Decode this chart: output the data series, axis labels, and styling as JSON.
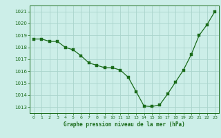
{
  "x": [
    0,
    1,
    2,
    3,
    4,
    5,
    6,
    7,
    8,
    9,
    10,
    11,
    12,
    13,
    14,
    15,
    16,
    17,
    18,
    19,
    20,
    21,
    22,
    23
  ],
  "y": [
    1018.7,
    1018.7,
    1018.5,
    1018.5,
    1018.0,
    1017.8,
    1017.3,
    1016.7,
    1016.5,
    1016.3,
    1016.3,
    1016.1,
    1015.5,
    1014.3,
    1013.1,
    1013.05,
    1013.2,
    1014.1,
    1015.1,
    1016.1,
    1017.4,
    1019.0,
    1019.9,
    1021.0
  ],
  "line_color": "#1a6b1a",
  "marker": "s",
  "marker_size": 2.2,
  "bg_color": "#cceee8",
  "grid_color": "#aad4cc",
  "xlabel": "Graphe pression niveau de la mer (hPa)",
  "xlabel_color": "#1a6b1a",
  "tick_color": "#1a6b1a",
  "ylim": [
    1012.5,
    1021.5
  ],
  "yticks": [
    1013,
    1014,
    1015,
    1016,
    1017,
    1018,
    1019,
    1020,
    1021
  ],
  "xlim": [
    -0.5,
    23.5
  ],
  "xticks": [
    0,
    1,
    2,
    3,
    4,
    5,
    6,
    7,
    8,
    9,
    10,
    11,
    12,
    13,
    14,
    15,
    16,
    17,
    18,
    19,
    20,
    21,
    22,
    23
  ]
}
